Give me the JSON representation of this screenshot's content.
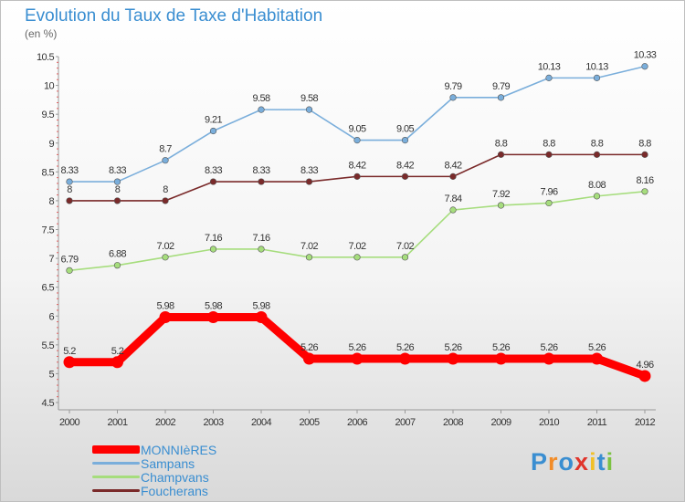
{
  "chart_data": {
    "type": "line",
    "title": "Evolution du Taux de Taxe d'Habitation",
    "unit_label": "(en %)",
    "x": [
      "2000",
      "2001",
      "2002",
      "2003",
      "2004",
      "2005",
      "2006",
      "2007",
      "2008",
      "2009",
      "2010",
      "2011",
      "2012"
    ],
    "y_ticks": [
      "10.5",
      "10",
      "9.5",
      "9",
      "8.5",
      "8",
      "7.5",
      "7",
      "6.5",
      "6",
      "5.5",
      "5",
      "4.5"
    ],
    "ylim": [
      4.5,
      10.5
    ],
    "grid": false,
    "legend_position": "bottom-left",
    "series": [
      {
        "name": "MONNIèRES",
        "color": "#ff0000",
        "values": [
          5.2,
          5.2,
          5.98,
          5.98,
          5.98,
          5.26,
          5.26,
          5.26,
          5.26,
          5.26,
          5.26,
          5.26,
          4.96
        ],
        "labels": [
          "5.2",
          "5.2",
          "5.98",
          "5.98",
          "5.98",
          "5.26",
          "5.26",
          "5.26",
          "5.26",
          "5.26",
          "5.26",
          "5.26",
          "4.96"
        ]
      },
      {
        "name": "Sampans",
        "color": "#7aaedb",
        "values": [
          8.33,
          8.33,
          8.7,
          9.21,
          9.58,
          9.58,
          9.05,
          9.05,
          9.79,
          9.79,
          10.13,
          10.13,
          10.33
        ],
        "labels": [
          "8.33",
          "8.33",
          "8.7",
          "9.21",
          "9.58",
          "9.58",
          "9.05",
          "9.05",
          "9.79",
          "9.79",
          "10.13",
          "10.13",
          "10.33"
        ]
      },
      {
        "name": "Champvans",
        "color": "#a6dd7d",
        "values": [
          6.79,
          6.88,
          7.02,
          7.16,
          7.16,
          7.02,
          7.02,
          7.02,
          7.84,
          7.92,
          7.96,
          8.08,
          8.16
        ],
        "labels": [
          "6.79",
          "6.88",
          "7.02",
          "7.16",
          "7.16",
          "7.02",
          "7.02",
          "7.02",
          "7.84",
          "7.92",
          "7.96",
          "8.08",
          "8.16"
        ]
      },
      {
        "name": "Foucherans",
        "color": "#7a2a2a",
        "values": [
          8,
          8,
          8,
          8.33,
          8.33,
          8.33,
          8.42,
          8.42,
          8.42,
          8.8,
          8.8,
          8.8,
          8.8
        ],
        "labels": [
          "8",
          "8",
          "8",
          "8.33",
          "8.33",
          "8.33",
          "8.42",
          "8.42",
          "8.42",
          "8.8",
          "8.8",
          "8.8",
          "8.8"
        ]
      }
    ]
  },
  "logo": {
    "letters": [
      "P",
      "r",
      "o",
      "x",
      "i",
      "t",
      "i"
    ],
    "colors": [
      "#3a8ed1",
      "#f28c28",
      "#3a8ed1",
      "#e0342b",
      "#f2c028",
      "#3a8ed1",
      "#7cc242"
    ]
  }
}
